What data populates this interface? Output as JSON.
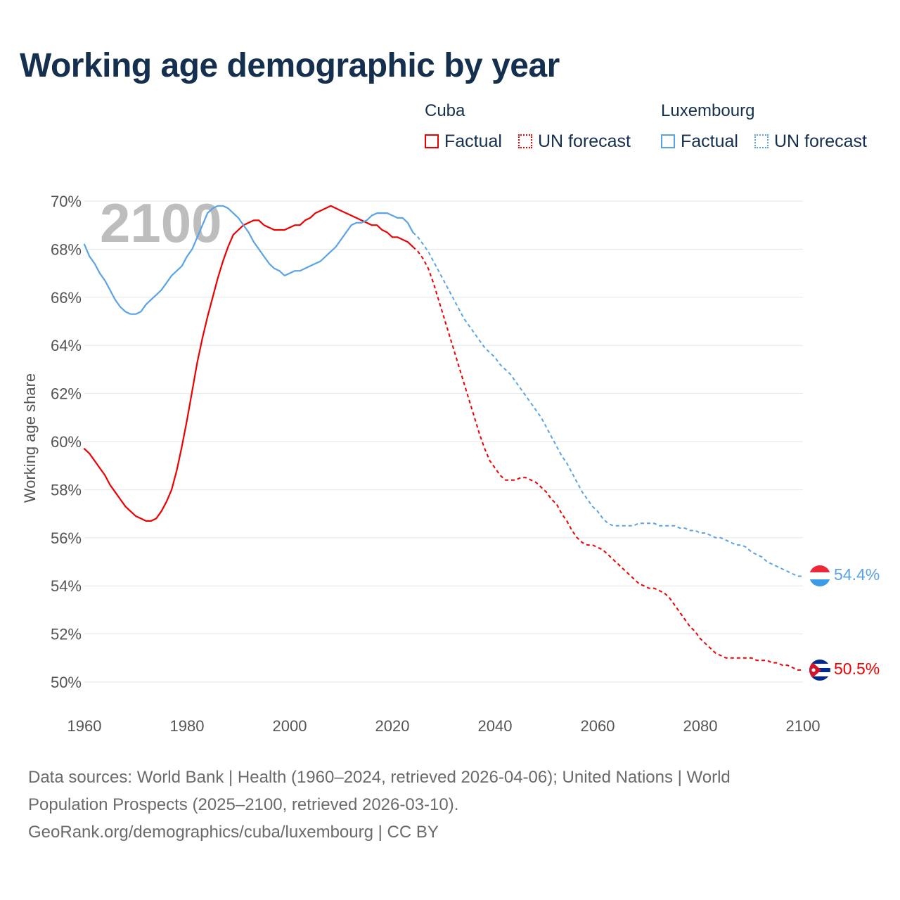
{
  "title": "Working age demographic by year",
  "legend": {
    "groups": [
      {
        "name": "Cuba",
        "color": "#ee0000",
        "factual_label": "Factual",
        "forecast_label": "UN forecast"
      },
      {
        "name": "Luxembourg",
        "color": "#5aa3e6",
        "factual_label": "Factual",
        "forecast_label": "UN forecast"
      }
    ]
  },
  "chart_data": {
    "type": "line",
    "title": "Working age demographic by year",
    "xlabel": "",
    "ylabel": "Working age share",
    "xlim": [
      1960,
      2100
    ],
    "ylim": [
      49,
      70.5
    ],
    "x_ticks": [
      1960,
      1980,
      2000,
      2020,
      2040,
      2060,
      2080,
      2100
    ],
    "y_ticks": [
      50,
      52,
      54,
      56,
      58,
      60,
      62,
      64,
      66,
      68,
      70
    ],
    "y_tick_suffix": "%",
    "grid": true,
    "year_overlay": "2100",
    "series": [
      {
        "name": "Cuba",
        "color": "#ee0000",
        "flag": "cuba-flag",
        "end_label": "50.5%",
        "factual": {
          "x": [
            1960,
            1961,
            1962,
            1963,
            1964,
            1965,
            1966,
            1967,
            1968,
            1969,
            1970,
            1971,
            1972,
            1973,
            1974,
            1975,
            1976,
            1977,
            1978,
            1979,
            1980,
            1981,
            1982,
            1983,
            1984,
            1985,
            1986,
            1987,
            1988,
            1989,
            1990,
            1991,
            1992,
            1993,
            1994,
            1995,
            1996,
            1997,
            1998,
            1999,
            2000,
            2001,
            2002,
            2003,
            2004,
            2005,
            2006,
            2007,
            2008,
            2009,
            2010,
            2011,
            2012,
            2013,
            2014,
            2015,
            2016,
            2017,
            2018,
            2019,
            2020,
            2021,
            2022,
            2023,
            2024
          ],
          "y": [
            59.7,
            59.5,
            59.2,
            58.9,
            58.6,
            58.2,
            57.9,
            57.6,
            57.3,
            57.1,
            56.9,
            56.8,
            56.7,
            56.7,
            56.8,
            57.1,
            57.5,
            58.0,
            58.8,
            59.8,
            60.9,
            62.1,
            63.3,
            64.3,
            65.2,
            66.0,
            66.8,
            67.5,
            68.1,
            68.6,
            68.8,
            69.0,
            69.1,
            69.2,
            69.2,
            69.0,
            68.9,
            68.8,
            68.8,
            68.8,
            68.9,
            69.0,
            69.0,
            69.2,
            69.3,
            69.5,
            69.6,
            69.7,
            69.8,
            69.7,
            69.6,
            69.5,
            69.4,
            69.3,
            69.2,
            69.1,
            69.0,
            69.0,
            68.8,
            68.7,
            68.5,
            68.5,
            68.4,
            68.3,
            68.1
          ]
        },
        "forecast": {
          "x": [
            2024,
            2025,
            2026,
            2027,
            2028,
            2029,
            2030,
            2031,
            2032,
            2033,
            2034,
            2035,
            2036,
            2037,
            2038,
            2039,
            2040,
            2041,
            2042,
            2043,
            2044,
            2045,
            2046,
            2047,
            2048,
            2049,
            2050,
            2051,
            2052,
            2053,
            2054,
            2055,
            2056,
            2057,
            2058,
            2059,
            2060,
            2061,
            2062,
            2063,
            2064,
            2065,
            2066,
            2067,
            2068,
            2069,
            2070,
            2071,
            2072,
            2073,
            2074,
            2075,
            2076,
            2077,
            2078,
            2079,
            2080,
            2081,
            2082,
            2083,
            2084,
            2085,
            2086,
            2087,
            2088,
            2089,
            2090,
            2091,
            2092,
            2093,
            2094,
            2095,
            2096,
            2097,
            2098,
            2099,
            2100
          ],
          "y": [
            68.1,
            67.9,
            67.6,
            67.2,
            66.6,
            65.9,
            65.2,
            64.5,
            63.8,
            63.1,
            62.4,
            61.7,
            61.0,
            60.3,
            59.7,
            59.2,
            58.9,
            58.6,
            58.4,
            58.4,
            58.4,
            58.5,
            58.5,
            58.4,
            58.3,
            58.1,
            57.9,
            57.6,
            57.4,
            57.0,
            56.7,
            56.3,
            56.0,
            55.8,
            55.7,
            55.7,
            55.6,
            55.5,
            55.3,
            55.1,
            54.9,
            54.7,
            54.5,
            54.3,
            54.1,
            54.0,
            53.9,
            53.9,
            53.8,
            53.7,
            53.5,
            53.2,
            52.9,
            52.6,
            52.3,
            52.1,
            51.8,
            51.6,
            51.4,
            51.2,
            51.1,
            51.0,
            51.0,
            51.0,
            51.0,
            51.0,
            51.0,
            50.9,
            50.9,
            50.9,
            50.8,
            50.8,
            50.7,
            50.7,
            50.6,
            50.5,
            50.5
          ]
        }
      },
      {
        "name": "Luxembourg",
        "color": "#5aa3e6",
        "flag": "luxembourg-flag",
        "end_label": "54.4%",
        "factual": {
          "x": [
            1960,
            1961,
            1962,
            1963,
            1964,
            1965,
            1966,
            1967,
            1968,
            1969,
            1970,
            1971,
            1972,
            1973,
            1974,
            1975,
            1976,
            1977,
            1978,
            1979,
            1980,
            1981,
            1982,
            1983,
            1984,
            1985,
            1986,
            1987,
            1988,
            1989,
            1990,
            1991,
            1992,
            1993,
            1994,
            1995,
            1996,
            1997,
            1998,
            1999,
            2000,
            2001,
            2002,
            2003,
            2004,
            2005,
            2006,
            2007,
            2008,
            2009,
            2010,
            2011,
            2012,
            2013,
            2014,
            2015,
            2016,
            2017,
            2018,
            2019,
            2020,
            2021,
            2022,
            2023,
            2024
          ],
          "y": [
            68.2,
            67.7,
            67.4,
            67.0,
            66.7,
            66.3,
            65.9,
            65.6,
            65.4,
            65.3,
            65.3,
            65.4,
            65.7,
            65.9,
            66.1,
            66.3,
            66.6,
            66.9,
            67.1,
            67.3,
            67.7,
            68.0,
            68.5,
            69.0,
            69.5,
            69.7,
            69.8,
            69.8,
            69.7,
            69.5,
            69.3,
            69.0,
            68.7,
            68.3,
            68.0,
            67.7,
            67.4,
            67.2,
            67.1,
            66.9,
            67.0,
            67.1,
            67.1,
            67.2,
            67.3,
            67.4,
            67.5,
            67.7,
            67.9,
            68.1,
            68.4,
            68.7,
            69.0,
            69.1,
            69.1,
            69.2,
            69.4,
            69.5,
            69.5,
            69.5,
            69.4,
            69.3,
            69.3,
            69.1,
            68.7
          ]
        },
        "forecast": {
          "x": [
            2024,
            2025,
            2026,
            2027,
            2028,
            2029,
            2030,
            2031,
            2032,
            2033,
            2034,
            2035,
            2036,
            2037,
            2038,
            2039,
            2040,
            2041,
            2042,
            2043,
            2044,
            2045,
            2046,
            2047,
            2048,
            2049,
            2050,
            2051,
            2052,
            2053,
            2054,
            2055,
            2056,
            2057,
            2058,
            2059,
            2060,
            2061,
            2062,
            2063,
            2064,
            2065,
            2066,
            2067,
            2068,
            2069,
            2070,
            2071,
            2072,
            2073,
            2074,
            2075,
            2076,
            2077,
            2078,
            2079,
            2080,
            2081,
            2082,
            2083,
            2084,
            2085,
            2086,
            2087,
            2088,
            2089,
            2090,
            2091,
            2092,
            2093,
            2094,
            2095,
            2096,
            2097,
            2098,
            2099,
            2100
          ],
          "y": [
            68.7,
            68.5,
            68.2,
            67.9,
            67.5,
            67.1,
            66.7,
            66.3,
            65.9,
            65.5,
            65.1,
            64.8,
            64.5,
            64.2,
            63.9,
            63.7,
            63.5,
            63.2,
            63.0,
            62.8,
            62.5,
            62.2,
            61.9,
            61.6,
            61.3,
            61.0,
            60.6,
            60.2,
            59.8,
            59.4,
            59.1,
            58.7,
            58.3,
            57.9,
            57.6,
            57.3,
            57.1,
            56.8,
            56.6,
            56.5,
            56.5,
            56.5,
            56.5,
            56.5,
            56.6,
            56.6,
            56.6,
            56.6,
            56.5,
            56.5,
            56.5,
            56.5,
            56.4,
            56.4,
            56.3,
            56.3,
            56.2,
            56.2,
            56.1,
            56.0,
            56.0,
            55.9,
            55.8,
            55.7,
            55.7,
            55.6,
            55.4,
            55.3,
            55.2,
            55.0,
            54.9,
            54.8,
            54.7,
            54.6,
            54.5,
            54.4,
            54.4
          ]
        }
      }
    ]
  },
  "footer": {
    "line1": "Data sources: World Bank | Health (1960–2024, retrieved 2026-04-06); United Nations | World",
    "line2": "Population Prospects (2025–2100, retrieved 2026-03-10).",
    "line3": "GeoRank.org/demographics/cuba/luxembourg | CC BY"
  }
}
